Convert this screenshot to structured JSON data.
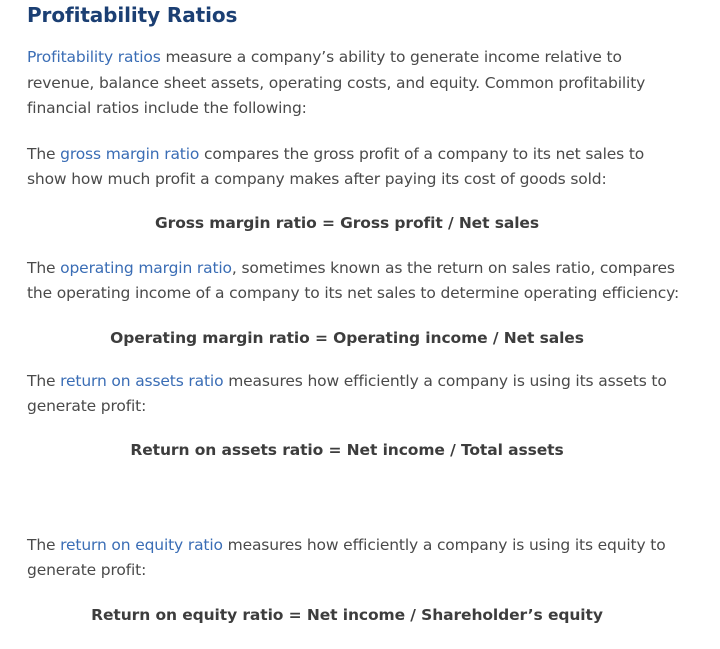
{
  "section": {
    "title": "Profitability Ratios",
    "intro": {
      "link": "Profitability ratios",
      "text": " measure a company’s ability to generate income relative to revenue, balance sheet assets, operating costs, and equity. Common profitability financial ratios include the following:"
    },
    "items": [
      {
        "prefix": "The ",
        "link": "gross margin ratio",
        "text": " compares the gross profit of a company to its net sales to show how much profit a company makes after paying its cost of goods sold:",
        "formula": "Gross margin ratio = Gross profit / Net sales"
      },
      {
        "prefix": "The ",
        "link": "operating margin ratio",
        "text": ", sometimes known as the return on sales ratio, compares the operating income of a company to its net sales to determine operating efficiency:",
        "formula": "Operating margin ratio = Operating income / Net sales"
      },
      {
        "prefix": "The ",
        "link": "return on assets ratio",
        "text": " measures how efficiently a company is using its assets to generate profit:",
        "formula": "Return on assets ratio = Net income / Total assets"
      },
      {
        "prefix": "The ",
        "link": "return on equity ratio",
        "text": " measures how efficiently a company is using its equity to generate profit:",
        "formula": "Return on equity ratio = Net income / Shareholder’s equity"
      }
    ]
  },
  "colors": {
    "title": "#1b3f73",
    "link": "#3a6db5",
    "body_text": "#4a4a4a",
    "formula_text": "#3d3d3d"
  }
}
